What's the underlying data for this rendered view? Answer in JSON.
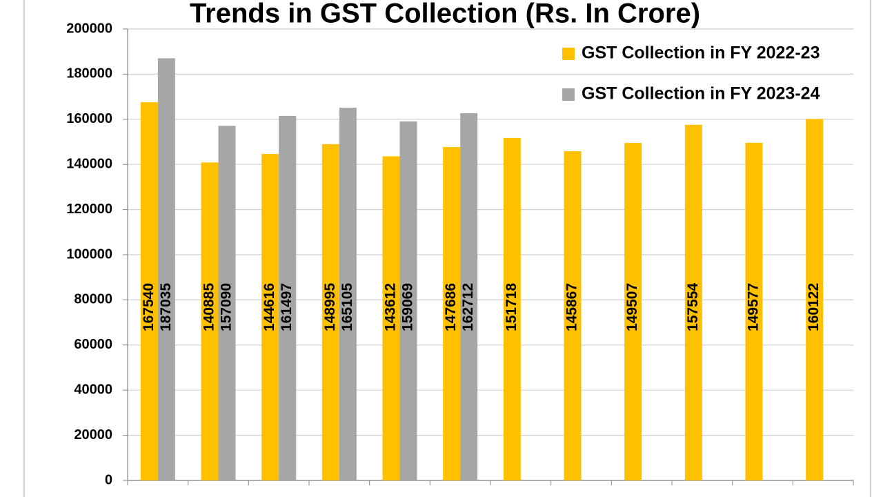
{
  "chart_data": {
    "type": "bar",
    "title": "Trends in GST Collection (Rs. In Crore)",
    "categories": [
      null,
      null,
      null,
      null,
      null,
      null,
      null,
      null,
      null,
      null,
      null,
      null
    ],
    "series": [
      {
        "name": "GST Collection in FY 2022-23",
        "color": "#ffc000",
        "values": [
          167540,
          140885,
          144616,
          148995,
          143612,
          147686,
          151718,
          145867,
          149507,
          157554,
          149577,
          160122
        ]
      },
      {
        "name": "GST Collection in FY 2023-24",
        "color": "#a6a6a6",
        "values": [
          187035,
          157090,
          161497,
          165105,
          159069,
          162712,
          null,
          null,
          null,
          null,
          null,
          null
        ]
      }
    ],
    "ylim": [
      0,
      200000
    ],
    "yticks": [
      0,
      20000,
      40000,
      60000,
      80000,
      100000,
      120000,
      140000,
      160000,
      180000,
      200000
    ],
    "grid": true,
    "legend": "top-right"
  }
}
